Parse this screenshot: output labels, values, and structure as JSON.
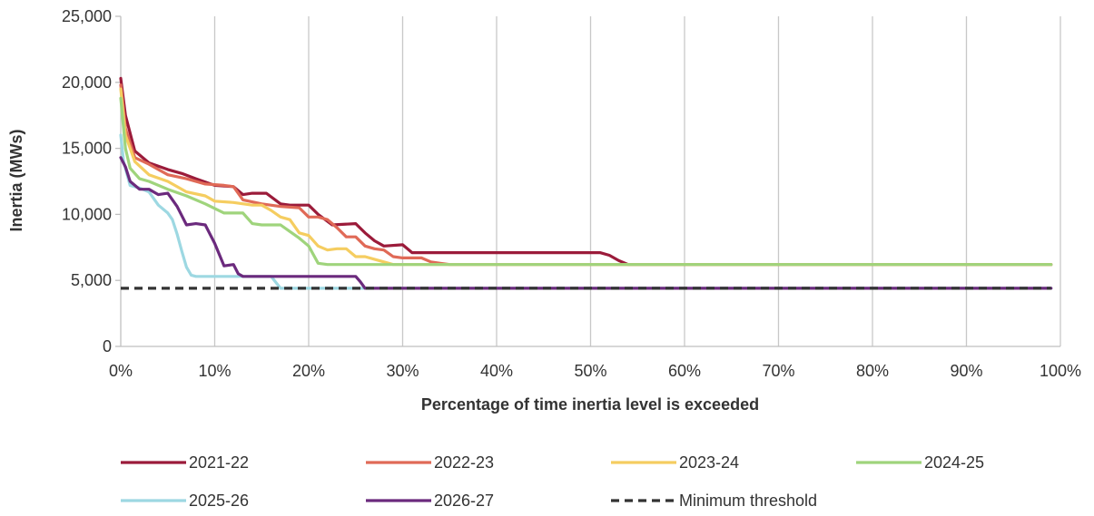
{
  "chart_data": {
    "type": "line",
    "title": "",
    "xlabel": "Percentage of time inertia level is exceeded",
    "ylabel": "Inertia (MWs)",
    "xlim": [
      0,
      100
    ],
    "ylim": [
      0,
      25000
    ],
    "x_ticks": [
      0,
      10,
      20,
      30,
      40,
      50,
      60,
      70,
      80,
      90,
      100
    ],
    "x_tick_labels": [
      "0%",
      "10%",
      "20%",
      "30%",
      "40%",
      "50%",
      "60%",
      "70%",
      "80%",
      "90%",
      "100%"
    ],
    "y_ticks": [
      0,
      5000,
      10000,
      15000,
      20000,
      25000
    ],
    "y_tick_labels": [
      "0",
      "5,000",
      "10,000",
      "15,000",
      "20,000",
      "25,000"
    ],
    "grid": "vertical",
    "legend_position": "bottom",
    "series": [
      {
        "name": "2021-22",
        "color": "#9b1b3a",
        "dash": "solid",
        "x": [
          0,
          0.5,
          1.5,
          3,
          5,
          6.5,
          8,
          10,
          12,
          13,
          14,
          15.5,
          17,
          18,
          19,
          20,
          21,
          22.5,
          25,
          26,
          27,
          28,
          30,
          31,
          40,
          51,
          52,
          53,
          54,
          99
        ],
        "y": [
          20300,
          17500,
          14800,
          13900,
          13400,
          13100,
          12700,
          12200,
          12100,
          11500,
          11600,
          11600,
          10800,
          10700,
          10700,
          10700,
          10000,
          9200,
          9300,
          8600,
          8000,
          7600,
          7700,
          7100,
          7100,
          7100,
          6900,
          6500,
          6200,
          6200
        ]
      },
      {
        "name": "2022-23",
        "color": "#e06a57",
        "dash": "solid",
        "x": [
          0,
          0.5,
          1.5,
          3,
          5,
          7,
          9,
          11,
          12,
          13,
          15,
          17,
          19,
          20,
          21,
          22,
          23,
          24,
          25,
          26,
          27,
          28,
          29,
          30,
          32,
          33,
          34,
          35,
          36,
          99
        ],
        "y": [
          19800,
          16500,
          14300,
          13800,
          13000,
          12700,
          12300,
          12200,
          12100,
          11100,
          10800,
          10600,
          10500,
          9800,
          9800,
          9600,
          9000,
          8300,
          8300,
          7600,
          7400,
          7300,
          6800,
          6700,
          6700,
          6400,
          6300,
          6200,
          6200,
          6200
        ]
      },
      {
        "name": "2023-24",
        "color": "#f5cd60",
        "dash": "solid",
        "x": [
          0,
          0.5,
          1.5,
          3,
          5,
          7,
          9,
          10,
          12,
          14,
          15,
          16,
          17,
          18,
          19,
          20,
          21,
          22,
          23,
          24,
          25,
          26,
          27,
          28,
          29,
          30,
          99
        ],
        "y": [
          19500,
          16000,
          14000,
          13000,
          12500,
          11700,
          11400,
          11000,
          10900,
          10700,
          10700,
          10300,
          9800,
          9600,
          8600,
          8400,
          7600,
          7300,
          7400,
          7400,
          6800,
          6800,
          6600,
          6400,
          6200,
          6200,
          6200
        ]
      },
      {
        "name": "2024-25",
        "color": "#9fd47c",
        "dash": "solid",
        "x": [
          0,
          0.5,
          1,
          2,
          3,
          5,
          7,
          9,
          11,
          13,
          14,
          15,
          17,
          18,
          19,
          20,
          21,
          22,
          99
        ],
        "y": [
          18800,
          15000,
          13500,
          12700,
          12500,
          11900,
          11400,
          10800,
          10100,
          10100,
          9300,
          9200,
          9200,
          8700,
          8200,
          7600,
          6300,
          6200,
          6200
        ]
      },
      {
        "name": "2025-26",
        "color": "#9dd8e2",
        "dash": "solid",
        "x": [
          0,
          0.3,
          1,
          2,
          3,
          4,
          5,
          5.5,
          6,
          6.5,
          7,
          7.5,
          8,
          9,
          12,
          16,
          17,
          18,
          99
        ],
        "y": [
          16000,
          14000,
          12200,
          12000,
          11700,
          10700,
          10100,
          9600,
          8500,
          7200,
          6000,
          5400,
          5300,
          5300,
          5300,
          5300,
          4400,
          4400,
          4400
        ]
      },
      {
        "name": "2026-27",
        "color": "#6b2a7d",
        "dash": "solid",
        "x": [
          0,
          0.5,
          1,
          2,
          3,
          4,
          5,
          6,
          7,
          8,
          9,
          10,
          11,
          12,
          12.5,
          13,
          14,
          15,
          20,
          25,
          25.5,
          26,
          27,
          99
        ],
        "y": [
          14300,
          13600,
          12500,
          11900,
          11900,
          11500,
          11600,
          10600,
          9200,
          9300,
          9200,
          7800,
          6100,
          6200,
          5500,
          5300,
          5300,
          5300,
          5300,
          5300,
          4900,
          4400,
          4400,
          4400
        ]
      },
      {
        "name": "Minimum threshold",
        "color": "#333333",
        "dash": "dashed",
        "x": [
          0,
          99
        ],
        "y": [
          4400,
          4400
        ]
      }
    ]
  }
}
